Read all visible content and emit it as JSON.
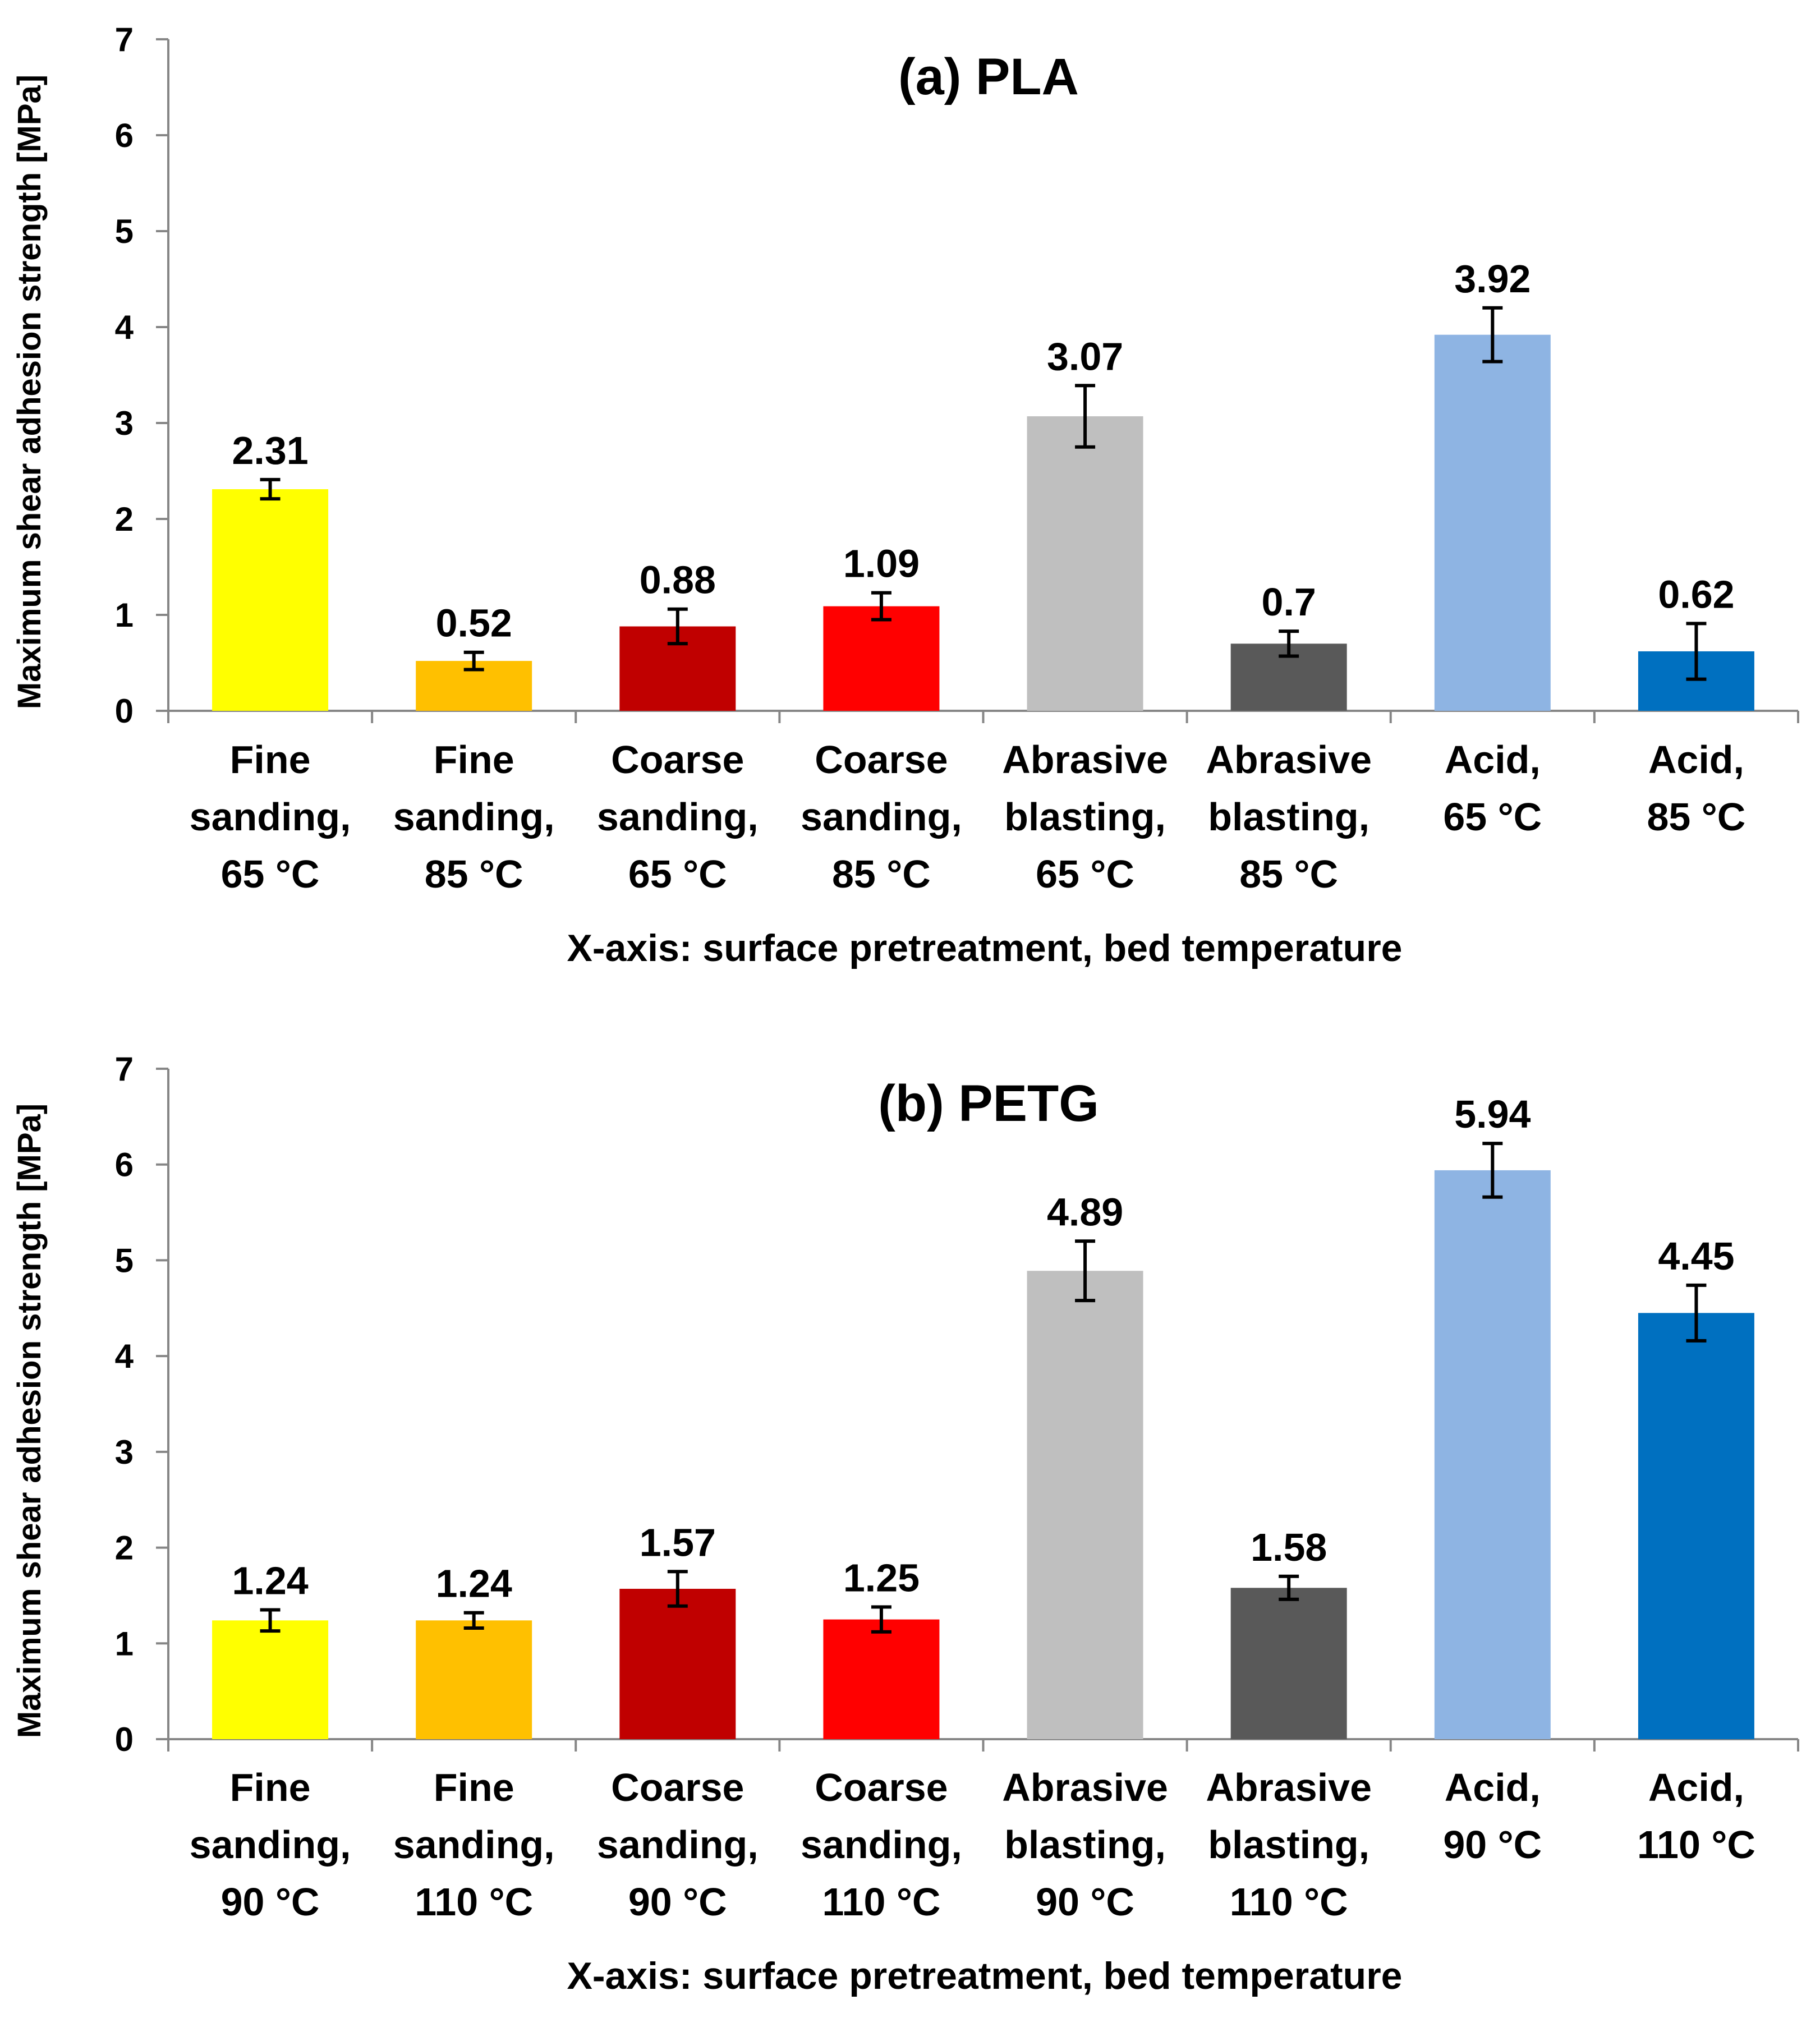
{
  "chart_data": [
    {
      "type": "bar",
      "title": "(a) PLA",
      "xlabel": "X-axis: surface pretreatment, bed temperature",
      "ylabel": "Maximum shear adhesion strength [MPa]",
      "ylim": [
        0,
        7
      ],
      "yticks": [
        "0",
        "1",
        "2",
        "3",
        "4",
        "5",
        "6",
        "7"
      ],
      "grid": false,
      "categories": [
        [
          "Fine",
          "sanding,",
          "65 °C"
        ],
        [
          "Fine",
          "sanding,",
          "85 °C"
        ],
        [
          "Coarse",
          "sanding,",
          "65 °C"
        ],
        [
          "Coarse",
          "sanding,",
          "85 °C"
        ],
        [
          "Abrasive",
          "blasting,",
          "65 °C"
        ],
        [
          "Abrasive",
          "blasting,",
          "85 °C"
        ],
        [
          "Acid,",
          "65 °C"
        ],
        [
          "Acid,",
          "85 °C"
        ]
      ],
      "values": [
        2.31,
        0.52,
        0.88,
        1.09,
        3.07,
        0.7,
        3.92,
        0.62
      ],
      "value_labels": [
        "2.31",
        "0.52",
        "0.88",
        "1.09",
        "3.07",
        "0.7",
        "3.92",
        "0.62"
      ],
      "errors": [
        0.1,
        0.09,
        0.18,
        0.14,
        0.32,
        0.13,
        0.28,
        0.29
      ],
      "colors": [
        "#FFFF00",
        "#FFC000",
        "#C00000",
        "#FF0000",
        "#BFBFBF",
        "#595959",
        "#8EB4E3",
        "#0070C0"
      ]
    },
    {
      "type": "bar",
      "title": "(b) PETG",
      "xlabel": "X-axis: surface pretreatment, bed temperature",
      "ylabel": "Maximum shear adhesion strength [MPa]",
      "ylim": [
        0,
        7
      ],
      "yticks": [
        "0",
        "1",
        "2",
        "3",
        "4",
        "5",
        "6",
        "7"
      ],
      "grid": false,
      "categories": [
        [
          "Fine",
          "sanding,",
          "90 °C"
        ],
        [
          "Fine",
          "sanding,",
          "110 °C"
        ],
        [
          "Coarse",
          "sanding,",
          "90 °C"
        ],
        [
          "Coarse",
          "sanding,",
          "110 °C"
        ],
        [
          "Abrasive",
          "blasting,",
          "90 °C"
        ],
        [
          "Abrasive",
          "blasting,",
          "110 °C"
        ],
        [
          "Acid,",
          "90 °C"
        ],
        [
          "Acid,",
          "110 °C"
        ]
      ],
      "values": [
        1.24,
        1.24,
        1.57,
        1.25,
        4.89,
        1.58,
        5.94,
        4.45
      ],
      "value_labels": [
        "1.24",
        "1.24",
        "1.57",
        "1.25",
        "4.89",
        "1.58",
        "5.94",
        "4.45"
      ],
      "errors": [
        0.11,
        0.08,
        0.18,
        0.13,
        0.31,
        0.12,
        0.28,
        0.29
      ],
      "colors": [
        "#FFFF00",
        "#FFC000",
        "#C00000",
        "#FF0000",
        "#BFBFBF",
        "#595959",
        "#8EB4E3",
        "#0070C0"
      ]
    }
  ]
}
